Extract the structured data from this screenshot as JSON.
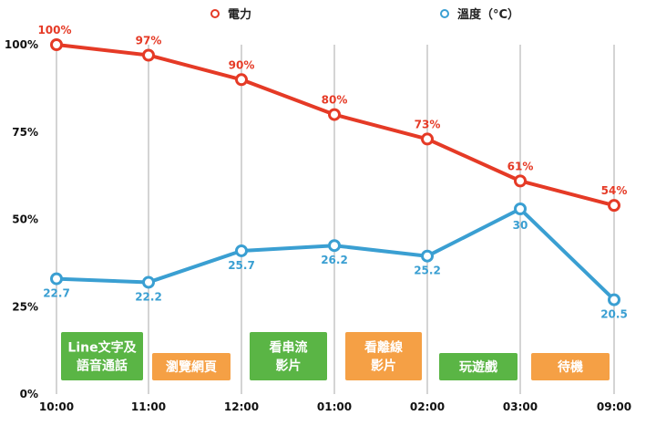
{
  "chart_data": {
    "type": "line",
    "categories": [
      "10:00",
      "11:00",
      "12:00",
      "01:00",
      "02:00",
      "03:00",
      "09:00"
    ],
    "y_ticks": [
      "0%",
      "25%",
      "50%",
      "75%",
      "100%"
    ],
    "ylim": [
      0,
      100
    ],
    "grid": "vertical",
    "legend_position": "top",
    "series": [
      {
        "name": "電力",
        "color": "#e53a26",
        "values": [
          100,
          97,
          90,
          80,
          73,
          61,
          54
        ],
        "labels": [
          "100%",
          "97%",
          "90%",
          "80%",
          "73%",
          "61%",
          "54%"
        ]
      },
      {
        "name": "溫度（°C）",
        "color": "#3a9fd2",
        "values": [
          33,
          32,
          41,
          42.5,
          39.5,
          53,
          27
        ],
        "labels": [
          "22.7",
          "22.2",
          "25.7",
          "26.2",
          "25.2",
          "30",
          "20.5"
        ]
      }
    ],
    "activities": [
      {
        "lines": [
          "Line文字及",
          "語音通話"
        ],
        "color": "#5ab545"
      },
      {
        "lines": [
          "瀏覽網頁"
        ],
        "color": "#f5a045"
      },
      {
        "lines": [
          "看串流",
          "影片"
        ],
        "color": "#5ab545"
      },
      {
        "lines": [
          "看離線",
          "影片"
        ],
        "color": "#f5a045"
      },
      {
        "lines": [
          "玩遊戲"
        ],
        "color": "#5ab545"
      },
      {
        "lines": [
          "待機"
        ],
        "color": "#f5a045"
      }
    ]
  }
}
